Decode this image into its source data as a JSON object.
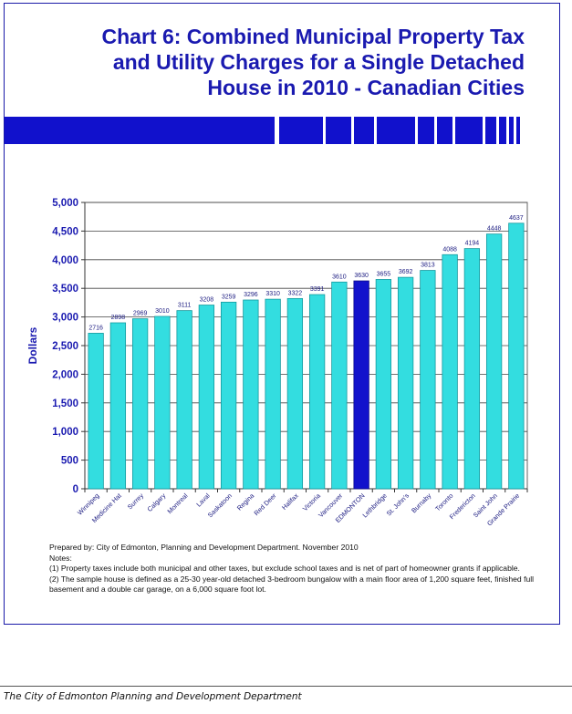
{
  "title_lines": [
    "Chart 6: Combined Municipal Property Tax",
    "and Utility Charges for a Single Detached",
    "House in 2010 - Canadian Cities"
  ],
  "chart_data": {
    "type": "bar",
    "categories": [
      "Winnipeg",
      "Medicine Hat",
      "Surrey",
      "Calgary",
      "Montreal",
      "Laval",
      "Saskatoon",
      "Regina",
      "Red Deer",
      "Halifax",
      "Victoria",
      "Vancouver",
      "EDMONTON",
      "Lethbridge",
      "St. John's",
      "Burnaby",
      "Toronto",
      "Fredericton",
      "Saint John",
      "Grande Prairie"
    ],
    "values": [
      2716,
      2898,
      2969,
      3010,
      3111,
      3208,
      3259,
      3296,
      3310,
      3322,
      3391,
      3610,
      3630,
      3655,
      3692,
      3813,
      4088,
      4194,
      4448,
      4637
    ],
    "data_labels": [
      "2716",
      "2898",
      "2969",
      "3010",
      "3111",
      "3208",
      "3259",
      "3296",
      "3310",
      "3322",
      "3391",
      "3610",
      "3630",
      "3655",
      "3692",
      "3813",
      "4088",
      "4194",
      "4448",
      "4637"
    ],
    "highlight_category": "EDMONTON",
    "ylabel": "Dollars",
    "ylim": [
      0,
      5000
    ],
    "yticks": [
      "0",
      "500",
      "1,000",
      "1,500",
      "2,000",
      "2,500",
      "3,000",
      "3,500",
      "4,000",
      "4,500",
      "5,000"
    ],
    "grid": true,
    "colors": {
      "bar": "#33dde0",
      "bar_edge": "#159a9f",
      "highlight": "#1212cc",
      "grid": "#444444",
      "plot_bg": "#ffffff"
    }
  },
  "notes": {
    "prepared_by": "Prepared by:  City of Edmonton, Planning and Development Department.  November 2010",
    "heading": "Notes:",
    "note1": "(1) Property taxes include both municipal and other taxes, but exclude school taxes and is net of part of homeowner grants if applicable.",
    "note2": "(2) The sample house is defined as a 25-30 year-old detached 3-bedroom bungalow  with a main floor area of 1,200 square feet, finished full basement and a double car garage, on a 6,000 square foot lot."
  },
  "footer": "The City of Edmonton Planning and Development Department",
  "colors": {
    "brand": "#1a1ab0",
    "stripe": "#1111cc"
  }
}
